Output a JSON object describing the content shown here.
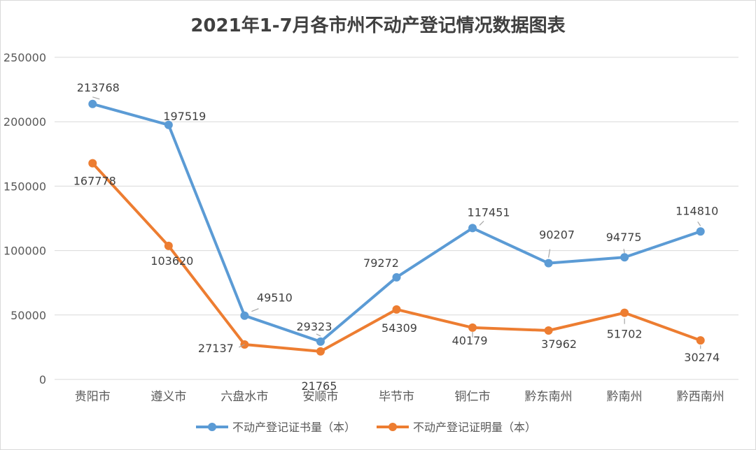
{
  "chart_data": {
    "type": "line",
    "title": "2021年1-7月各市州不动产登记情况数据图表",
    "categories": [
      "贵阳市",
      "遵义市",
      "六盘水市",
      "安顺市",
      "毕节市",
      "铜仁市",
      "黔东南州",
      "黔南州",
      "黔西南州"
    ],
    "series": [
      {
        "name": "不动产登记证书量（本）",
        "color": "#5b9bd5",
        "values": [
          213768,
          197519,
          49510,
          29323,
          79272,
          117451,
          90207,
          94775,
          114810
        ]
      },
      {
        "name": "不动产登记证明量（本）",
        "color": "#ed7d31",
        "values": [
          167778,
          103620,
          27137,
          21765,
          54309,
          40179,
          37962,
          51702,
          30274
        ]
      }
    ],
    "ylim": [
      0,
      250000
    ],
    "yticks": [
      "0",
      "50000",
      "100000",
      "150000",
      "200000",
      "250000"
    ],
    "grid": true,
    "legend_position": "bottom"
  }
}
